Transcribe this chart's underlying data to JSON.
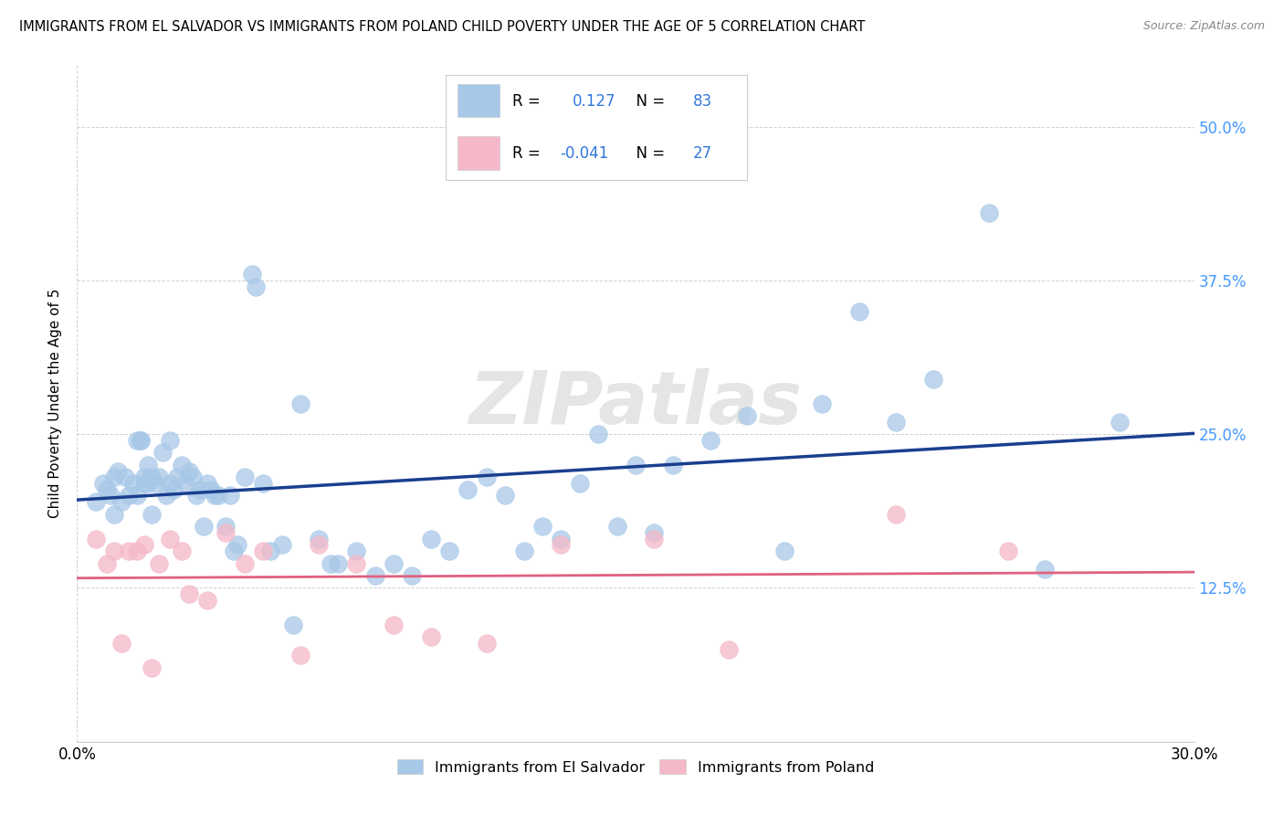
{
  "title": "IMMIGRANTS FROM EL SALVADOR VS IMMIGRANTS FROM POLAND CHILD POVERTY UNDER THE AGE OF 5 CORRELATION CHART",
  "source": "Source: ZipAtlas.com",
  "ylabel": "Child Poverty Under the Age of 5",
  "xlim": [
    0.0,
    0.3
  ],
  "ylim": [
    0.0,
    0.55
  ],
  "yticks": [
    0.125,
    0.25,
    0.375,
    0.5
  ],
  "ytick_labels": [
    "12.5%",
    "25.0%",
    "37.5%",
    "50.0%"
  ],
  "legend_label1": "Immigrants from El Salvador",
  "legend_label2": "Immigrants from Poland",
  "R1": "0.127",
  "N1": "83",
  "R2": "-0.041",
  "N2": "27",
  "blue_color": "#a8c8e8",
  "pink_color": "#f4b8c8",
  "blue_line_color": "#1a3f8f",
  "pink_line_color": "#e06080",
  "watermark": "ZIPatlas",
  "blue_scatter_x": [
    0.005,
    0.007,
    0.008,
    0.009,
    0.01,
    0.01,
    0.011,
    0.012,
    0.013,
    0.014,
    0.015,
    0.016,
    0.016,
    0.017,
    0.017,
    0.018,
    0.018,
    0.019,
    0.019,
    0.02,
    0.02,
    0.021,
    0.022,
    0.023,
    0.024,
    0.025,
    0.025,
    0.026,
    0.027,
    0.028,
    0.029,
    0.03,
    0.031,
    0.032,
    0.033,
    0.034,
    0.035,
    0.036,
    0.037,
    0.038,
    0.04,
    0.041,
    0.042,
    0.043,
    0.045,
    0.047,
    0.048,
    0.05,
    0.052,
    0.055,
    0.058,
    0.06,
    0.065,
    0.068,
    0.07,
    0.075,
    0.08,
    0.085,
    0.09,
    0.095,
    0.1,
    0.105,
    0.11,
    0.115,
    0.12,
    0.125,
    0.13,
    0.135,
    0.14,
    0.145,
    0.15,
    0.155,
    0.16,
    0.17,
    0.18,
    0.19,
    0.2,
    0.21,
    0.22,
    0.23,
    0.245,
    0.26,
    0.28
  ],
  "blue_scatter_y": [
    0.195,
    0.21,
    0.205,
    0.2,
    0.215,
    0.185,
    0.22,
    0.195,
    0.215,
    0.2,
    0.21,
    0.2,
    0.245,
    0.245,
    0.245,
    0.215,
    0.21,
    0.225,
    0.21,
    0.215,
    0.185,
    0.21,
    0.215,
    0.235,
    0.2,
    0.21,
    0.245,
    0.205,
    0.215,
    0.225,
    0.21,
    0.22,
    0.215,
    0.2,
    0.205,
    0.175,
    0.21,
    0.205,
    0.2,
    0.2,
    0.175,
    0.2,
    0.155,
    0.16,
    0.215,
    0.38,
    0.37,
    0.21,
    0.155,
    0.16,
    0.095,
    0.275,
    0.165,
    0.145,
    0.145,
    0.155,
    0.135,
    0.145,
    0.135,
    0.165,
    0.155,
    0.205,
    0.215,
    0.2,
    0.155,
    0.175,
    0.165,
    0.21,
    0.25,
    0.175,
    0.225,
    0.17,
    0.225,
    0.245,
    0.265,
    0.155,
    0.275,
    0.35,
    0.26,
    0.295,
    0.43,
    0.14,
    0.26
  ],
  "pink_scatter_x": [
    0.005,
    0.008,
    0.01,
    0.012,
    0.014,
    0.016,
    0.018,
    0.02,
    0.022,
    0.025,
    0.028,
    0.03,
    0.035,
    0.04,
    0.045,
    0.05,
    0.06,
    0.065,
    0.075,
    0.085,
    0.095,
    0.11,
    0.13,
    0.155,
    0.175,
    0.22,
    0.25
  ],
  "pink_scatter_y": [
    0.165,
    0.145,
    0.155,
    0.08,
    0.155,
    0.155,
    0.16,
    0.06,
    0.145,
    0.165,
    0.155,
    0.12,
    0.115,
    0.17,
    0.145,
    0.155,
    0.07,
    0.16,
    0.145,
    0.095,
    0.085,
    0.08,
    0.16,
    0.165,
    0.075,
    0.185,
    0.155
  ]
}
